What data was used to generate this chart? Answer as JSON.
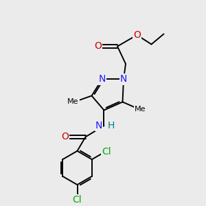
{
  "background_color": "#ebebeb",
  "atom_colors": {
    "C": "#000000",
    "N": "#1a1aff",
    "O": "#cc0000",
    "Cl": "#00aa00",
    "H": "#008080"
  },
  "bond_color": "#000000",
  "bond_width": 1.4,
  "font_size_atoms": 10,
  "font_size_small": 8
}
